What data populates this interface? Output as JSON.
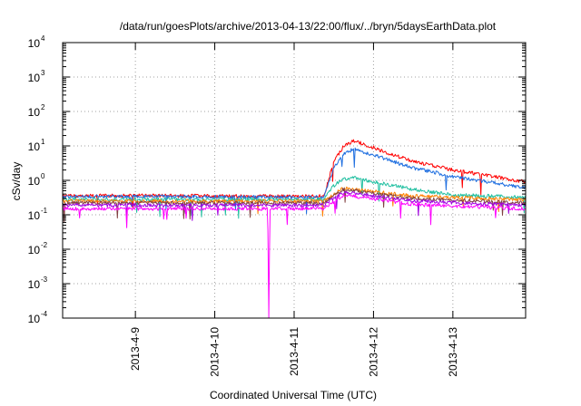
{
  "chart_data": {
    "type": "line",
    "title": "/data/run/goesPlots/archive/2013-04-13/22:00/flux/../bryn/5daysEarthData.plot",
    "xlabel": "Coordinated Universal Time (UTC)",
    "ylabel": "cSv/day",
    "yscale": "log",
    "ylim": [
      0.0001,
      10000
    ],
    "y_ticks": [
      {
        "base": "10",
        "exp": "4",
        "value": 10000
      },
      {
        "base": "10",
        "exp": "3",
        "value": 1000
      },
      {
        "base": "10",
        "exp": "2",
        "value": 100
      },
      {
        "base": "10",
        "exp": "1",
        "value": 10
      },
      {
        "base": "10",
        "exp": "0",
        "value": 1
      },
      {
        "base": "10",
        "exp": "-1",
        "value": 0.1
      },
      {
        "base": "10",
        "exp": "-2",
        "value": 0.01
      },
      {
        "base": "10",
        "exp": "-3",
        "value": 0.001
      },
      {
        "base": "10",
        "exp": "-4",
        "value": 0.0001
      }
    ],
    "xlim": [
      "2013-04-08T02:00",
      "2013-04-13T22:00"
    ],
    "x_ticks": [
      {
        "label": "2013-4-9",
        "date": "2013-04-09"
      },
      {
        "label": "2013-4-10",
        "date": "2013-04-10"
      },
      {
        "label": "2013-4-11",
        "date": "2013-04-11"
      },
      {
        "label": "2013-4-12",
        "date": "2013-04-12"
      },
      {
        "label": "2013-4-13",
        "date": "2013-04-13"
      }
    ],
    "grid": true,
    "legend": "none",
    "series": [
      {
        "color": "#ff0000",
        "x": [
          "2013-04-08T02:00",
          "2013-04-09T00:00",
          "2013-04-10T00:00",
          "2013-04-11T00:00",
          "2013-04-11T09:00",
          "2013-04-11T12:00",
          "2013-04-11T15:00",
          "2013-04-11T18:00",
          "2013-04-12T00:00",
          "2013-04-12T06:00",
          "2013-04-12T12:00",
          "2013-04-13T00:00",
          "2013-04-13T12:00",
          "2013-04-13T22:00"
        ],
        "y": [
          0.35,
          0.36,
          0.35,
          0.34,
          0.35,
          3.5,
          10,
          14,
          9,
          5.5,
          3.5,
          2,
          1.3,
          0.9
        ]
      },
      {
        "color": "#1f6fe0",
        "x": [
          "2013-04-08T02:00",
          "2013-04-09T00:00",
          "2013-04-10T00:00",
          "2013-04-11T00:00",
          "2013-04-11T09:00",
          "2013-04-11T12:00",
          "2013-04-11T15:00",
          "2013-04-11T18:00",
          "2013-04-12T00:00",
          "2013-04-12T06:00",
          "2013-04-12T12:00",
          "2013-04-13T00:00",
          "2013-04-13T12:00",
          "2013-04-13T22:00"
        ],
        "y": [
          0.33,
          0.34,
          0.33,
          0.32,
          0.33,
          2.2,
          6,
          8,
          5.5,
          3.5,
          2.3,
          1.3,
          0.85,
          0.6
        ]
      },
      {
        "color": "#1fbfa0",
        "x": [
          "2013-04-08T02:00",
          "2013-04-10T00:00",
          "2013-04-11T09:00",
          "2013-04-11T12:00",
          "2013-04-11T15:00",
          "2013-04-11T18:00",
          "2013-04-12T00:00",
          "2013-04-12T12:00",
          "2013-04-13T00:00",
          "2013-04-13T22:00"
        ],
        "y": [
          0.28,
          0.28,
          0.28,
          0.7,
          1.1,
          1.2,
          0.9,
          0.55,
          0.38,
          0.32
        ]
      },
      {
        "color": "#ff8000",
        "x": [
          "2013-04-08T02:00",
          "2013-04-10T00:00",
          "2013-04-11T09:00",
          "2013-04-11T15:00",
          "2013-04-11T18:00",
          "2013-04-12T12:00",
          "2013-04-13T22:00"
        ],
        "y": [
          0.25,
          0.25,
          0.25,
          0.6,
          0.55,
          0.35,
          0.27
        ]
      },
      {
        "color": "#804040",
        "x": [
          "2013-04-08T02:00",
          "2013-04-10T00:00",
          "2013-04-11T09:00",
          "2013-04-11T15:00",
          "2013-04-11T18:00",
          "2013-04-12T12:00",
          "2013-04-13T22:00"
        ],
        "y": [
          0.22,
          0.22,
          0.22,
          0.55,
          0.5,
          0.3,
          0.22
        ]
      },
      {
        "color": "#a000e0",
        "x": [
          "2013-04-08T02:00",
          "2013-04-10T00:00",
          "2013-04-11T09:00",
          "2013-04-11T15:00",
          "2013-04-11T18:00",
          "2013-04-12T12:00",
          "2013-04-13T22:00"
        ],
        "y": [
          0.19,
          0.19,
          0.19,
          0.45,
          0.42,
          0.25,
          0.19
        ]
      },
      {
        "color": "#ff00ff",
        "x": [
          "2013-04-08T02:00",
          "2013-04-08T12:00",
          "2013-04-09T00:00",
          "2013-04-09T12:00",
          "2013-04-10T00:00",
          "2013-04-10T16:00",
          "2013-04-10T16:20",
          "2013-04-10T16:40",
          "2013-04-11T00:00",
          "2013-04-11T09:00",
          "2013-04-11T15:00",
          "2013-04-11T18:00",
          "2013-04-12T12:00",
          "2013-04-13T22:00"
        ],
        "y": [
          0.15,
          0.15,
          0.15,
          0.15,
          0.15,
          0.15,
          0.0001,
          0.15,
          0.15,
          0.15,
          0.38,
          0.35,
          0.2,
          0.15
        ]
      }
    ]
  }
}
